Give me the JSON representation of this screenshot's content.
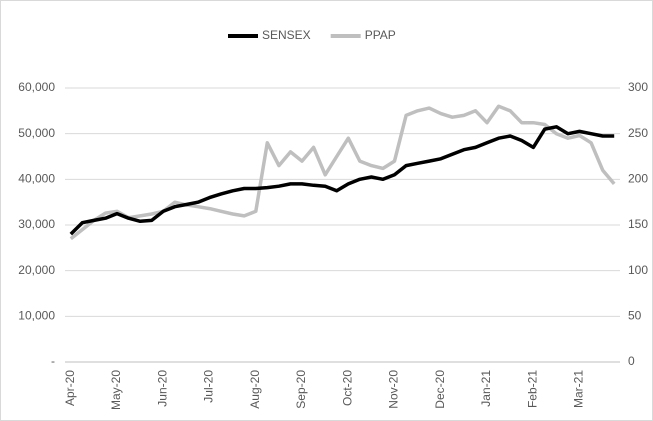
{
  "chart_data": {
    "type": "line",
    "categories": [
      "Apr-20",
      null,
      null,
      null,
      "May-20",
      null,
      null,
      null,
      "Jun-20",
      null,
      null,
      null,
      "Jul-20",
      null,
      null,
      null,
      "Aug-20",
      null,
      null,
      null,
      "Sep-20",
      null,
      null,
      null,
      "Oct-20",
      null,
      null,
      null,
      "Nov-20",
      null,
      null,
      null,
      "Dec-20",
      null,
      null,
      null,
      "Jan-21",
      null,
      null,
      null,
      "Feb-21",
      null,
      null,
      null,
      "Mar-21",
      null,
      null,
      null
    ],
    "series": [
      {
        "name": "SENSEX",
        "color": "#000000",
        "values": [
          28000,
          30500,
          31000,
          31500,
          32500,
          31500,
          30800,
          31000,
          33000,
          34000,
          34500,
          35000,
          36000,
          36800,
          37500,
          38000,
          38000,
          38200,
          38500,
          39000,
          39000,
          38700,
          38500,
          37500,
          39000,
          40000,
          40500,
          40000,
          41000,
          43000,
          43500,
          44000,
          44500,
          45500,
          46500,
          47000,
          48000,
          49000,
          49500,
          48500,
          47000,
          51000,
          51500,
          50000,
          50500,
          50000,
          49500,
          49500
        ]
      },
      {
        "name": "PPAP",
        "color": "#bfbfbf",
        "axis": "y2",
        "values": [
          135,
          145,
          155,
          163,
          165,
          158,
          160,
          162,
          165,
          175,
          172,
          170,
          168,
          165,
          162,
          160,
          165,
          240,
          215,
          230,
          220,
          235,
          205,
          225,
          245,
          220,
          215,
          212,
          220,
          270,
          275,
          278,
          272,
          268,
          270,
          275,
          262,
          280,
          275,
          262,
          262,
          260,
          250,
          245,
          248,
          240,
          210,
          195
        ]
      }
    ],
    "ylim": [
      0,
      60000
    ],
    "yticks": [
      {
        "value": 0,
        "label": "-"
      },
      {
        "value": 10000,
        "label": "10,000"
      },
      {
        "value": 20000,
        "label": "20,000"
      },
      {
        "value": 30000,
        "label": "30,000"
      },
      {
        "value": 40000,
        "label": "40,000"
      },
      {
        "value": 50000,
        "label": "50,000"
      },
      {
        "value": 60000,
        "label": "60,000"
      }
    ],
    "y2lim": [
      0,
      300
    ],
    "y2ticks": [
      0,
      50,
      100,
      150,
      200,
      250,
      300
    ],
    "grid": true,
    "legend": "top"
  }
}
